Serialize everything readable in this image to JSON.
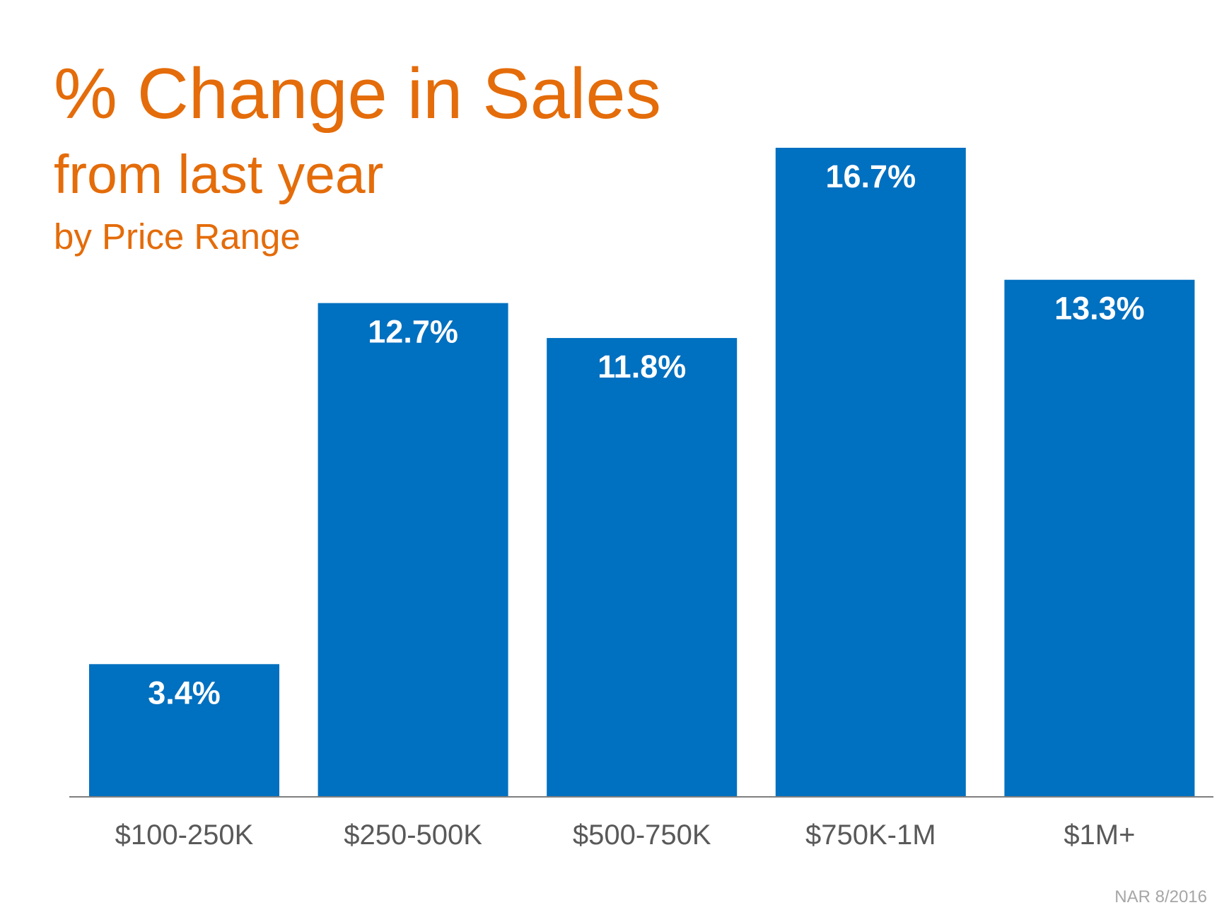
{
  "chart_data": {
    "type": "bar",
    "title": "% Change in Sales",
    "subtitle": "from last year",
    "subtitle2": "by Price Range",
    "source": "NAR 8/2016",
    "categories": [
      "$100-250K",
      "$250-500K",
      "$500-750K",
      "$750K-1M",
      "$1M+"
    ],
    "values": [
      3.4,
      12.7,
      11.8,
      16.7,
      13.3
    ],
    "value_labels": [
      "3.4%",
      "12.7%",
      "11.8%",
      "16.7%",
      "13.3%"
    ],
    "color": "#0070c0",
    "title_color": "#e46c0a"
  }
}
